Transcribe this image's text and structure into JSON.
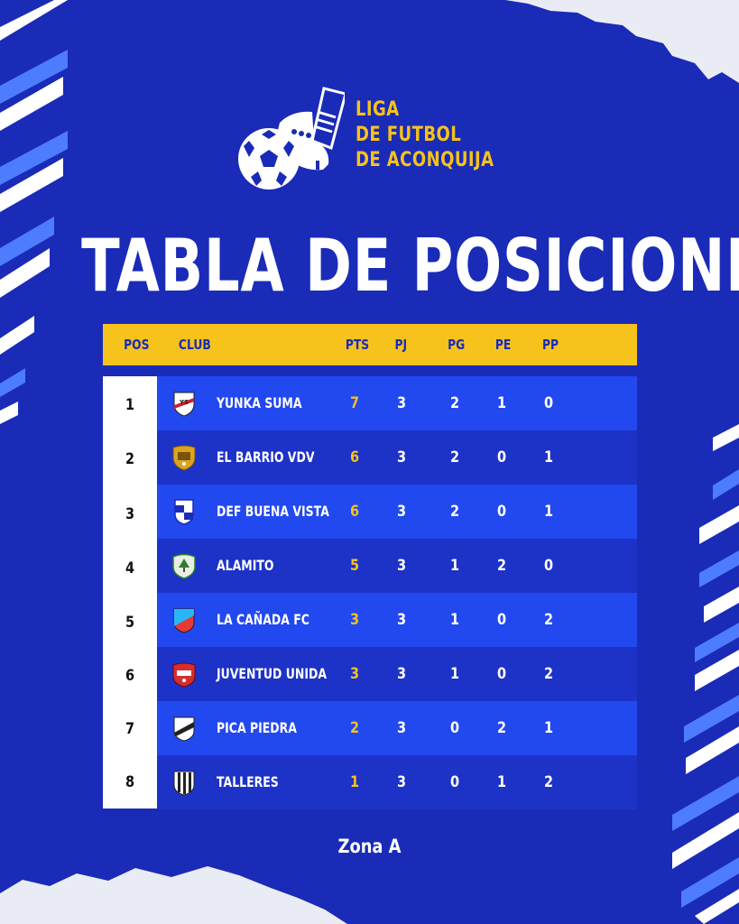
{
  "brand": {
    "line1": "LIGA",
    "line2": "DE FUTBOL",
    "line3": "DE ACONQUIJA"
  },
  "title": "TABLA DE POSICIONES",
  "table": {
    "headers": {
      "pos": "POS",
      "club": "CLUB",
      "pts": "PTS",
      "pj": "PJ",
      "pg": "PG",
      "pe": "PE",
      "pp": "PP"
    },
    "rows": [
      {
        "pos": "1",
        "club": "YUNKA SUMA",
        "pts": "7",
        "pj": "3",
        "pg": "2",
        "pe": "1",
        "pp": "0",
        "crest": "yunka-suma-crest"
      },
      {
        "pos": "2",
        "club": "EL BARRIO VDV",
        "pts": "6",
        "pj": "3",
        "pg": "2",
        "pe": "0",
        "pp": "1",
        "crest": "el-barrio-vdv-crest"
      },
      {
        "pos": "3",
        "club": "DEF BUENA VISTA",
        "pts": "6",
        "pj": "3",
        "pg": "2",
        "pe": "0",
        "pp": "1",
        "crest": "def-buena-vista-crest"
      },
      {
        "pos": "4",
        "club": "ALAMITO",
        "pts": "5",
        "pj": "3",
        "pg": "1",
        "pe": "2",
        "pp": "0",
        "crest": "alamito-crest"
      },
      {
        "pos": "5",
        "club": "LA CAÑADA FC",
        "pts": "3",
        "pj": "3",
        "pg": "1",
        "pe": "0",
        "pp": "2",
        "crest": "la-canada-fc-crest"
      },
      {
        "pos": "6",
        "club": "JUVENTUD UNIDA",
        "pts": "3",
        "pj": "3",
        "pg": "1",
        "pe": "0",
        "pp": "2",
        "crest": "juventud-unida-crest"
      },
      {
        "pos": "7",
        "club": "PICA PIEDRA",
        "pts": "2",
        "pj": "3",
        "pg": "0",
        "pe": "2",
        "pp": "1",
        "crest": "pica-piedra-crest"
      },
      {
        "pos": "8",
        "club": "TALLERES",
        "pts": "1",
        "pj": "3",
        "pg": "0",
        "pe": "1",
        "pp": "2",
        "crest": "talleres-crest"
      }
    ]
  },
  "footer": "Zona A",
  "colors": {
    "background": "#1a2bb8",
    "accent": "#f6c21c",
    "row_light": "#2248ef",
    "row_dark": "#1d32c7"
  }
}
